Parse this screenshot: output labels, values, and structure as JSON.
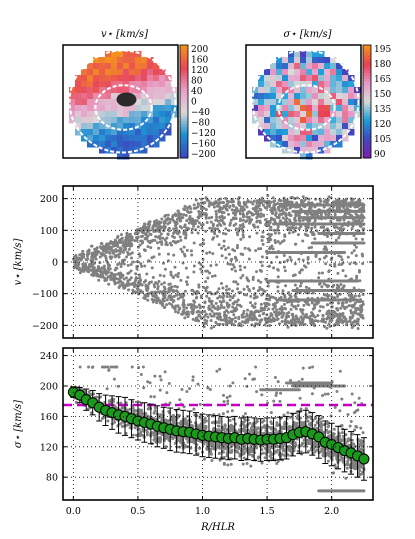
{
  "chart_data": [
    {
      "type": "heatmap",
      "title": "v⋆ [km/s]",
      "colorbar_ticks": [
        "200",
        "160",
        "120",
        "80",
        "40",
        "0",
        "−40",
        "−80",
        "−120",
        "−160",
        "−200"
      ],
      "range": [
        -200,
        200
      ],
      "colormap": [
        "#3b4cc0",
        "#1f8fd0",
        "#d9d9d9",
        "#e8a0c8",
        "#e8485a",
        "#f39020"
      ],
      "contours": [
        "outer-ellipse-white-dashed",
        "inner-ellipse-white-dashed"
      ]
    },
    {
      "type": "heatmap",
      "title": "σ⋆ [km/s]",
      "colorbar_ticks": [
        "195",
        "180",
        "165",
        "150",
        "135",
        "120",
        "105",
        "90"
      ],
      "range": [
        90,
        195
      ],
      "colormap": [
        "#7a1fb0",
        "#3b4cc0",
        "#1f9fd8",
        "#d9d9d9",
        "#e898c8",
        "#e84050",
        "#f39020"
      ],
      "contours": [
        "outer-ellipse-white-dashed",
        "inner-ellipse-white-dashed"
      ]
    },
    {
      "type": "scatter",
      "ylabel": "v⋆ [km/s]",
      "xlim": [
        -0.08,
        2.32
      ],
      "ylim": [
        -240,
        240
      ],
      "yticks": [
        "200",
        "100",
        "0",
        "−100",
        "−200"
      ],
      "grid": true,
      "series": [
        {
          "color": "#808080",
          "description_values": {
            "x_range": [
              0.0,
              2.25
            ],
            "envelope_abs_v": [
              [
                0.0,
                10
              ],
              [
                0.5,
                95
              ],
              [
                1.0,
                190
              ],
              [
                1.5,
                200
              ],
              [
                2.0,
                200
              ]
            ]
          }
        }
      ]
    },
    {
      "type": "scatter",
      "ylabel": "σ⋆ [km/s]",
      "xlabel": "R/HLR",
      "xlim": [
        -0.08,
        2.32
      ],
      "ylim": [
        50,
        250
      ],
      "xticks": [
        "0.0",
        "0.5",
        "1.0",
        "1.5",
        "2.0"
      ],
      "yticks": [
        "240",
        "200",
        "160",
        "120",
        "80"
      ],
      "grid": true,
      "reference_line": {
        "y": 175,
        "color": "#c000c0",
        "style": "dashed"
      },
      "series": [
        {
          "color": "#808080"
        },
        {
          "color": "#1a9a1a",
          "x": [
            0.0,
            0.05,
            0.1,
            0.15,
            0.2,
            0.25,
            0.3,
            0.35,
            0.4,
            0.45,
            0.5,
            0.55,
            0.6,
            0.65,
            0.7,
            0.75,
            0.8,
            0.85,
            0.9,
            0.95,
            1.0,
            1.05,
            1.1,
            1.15,
            1.2,
            1.25,
            1.3,
            1.35,
            1.4,
            1.45,
            1.5,
            1.55,
            1.6,
            1.65,
            1.7,
            1.75,
            1.8,
            1.85,
            1.9,
            1.95,
            2.0,
            2.05,
            2.1,
            2.15,
            2.2,
            2.25
          ],
          "y": [
            192,
            188,
            182,
            178,
            172,
            168,
            165,
            162,
            160,
            157,
            154,
            152,
            150,
            147,
            145,
            143,
            141,
            140,
            139,
            137,
            135,
            134,
            133,
            132,
            131,
            132,
            130,
            131,
            130,
            129,
            130,
            130,
            131,
            132,
            136,
            139,
            140,
            137,
            133,
            126,
            123,
            119,
            115,
            112,
            108,
            104
          ],
          "err": [
            7,
            10,
            14,
            16,
            18,
            20,
            22,
            24,
            25,
            25,
            25,
            26,
            26,
            27,
            27,
            28,
            28,
            28,
            28,
            28,
            28,
            28,
            28,
            28,
            28,
            28,
            28,
            28,
            28,
            28,
            28,
            28,
            28,
            28,
            28,
            28,
            28,
            28,
            28,
            28,
            28,
            28,
            28,
            28,
            28,
            28
          ]
        }
      ]
    }
  ]
}
